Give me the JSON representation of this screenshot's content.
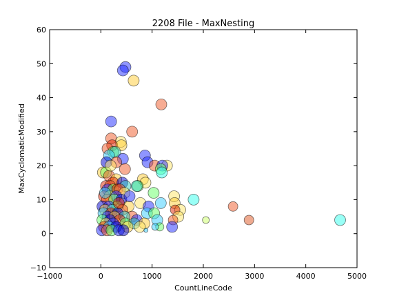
{
  "chart_data": {
    "type": "scatter",
    "title": "2208 File - MaxNesting",
    "xlabel": "CountLineCode",
    "ylabel": "MaxCyclomaticModified",
    "xlim": [
      -1000,
      5000
    ],
    "ylim": [
      -10,
      60
    ],
    "xticks": [
      -1000,
      0,
      1000,
      2000,
      3000,
      4000,
      5000
    ],
    "yticks": [
      -10,
      0,
      10,
      20,
      30,
      40,
      50,
      60
    ],
    "grid": false,
    "legend": "none",
    "marker_alpha": 0.5,
    "size_encodes": "MaxNesting",
    "points": [
      {
        "x": 480,
        "y": 49,
        "r": 8,
        "color": "#1f2bff"
      },
      {
        "x": 430,
        "y": 48,
        "r": 8,
        "color": "#1f2bff"
      },
      {
        "x": 640,
        "y": 45,
        "r": 8,
        "color": "#ffcc33"
      },
      {
        "x": 1180,
        "y": 38,
        "r": 8,
        "color": "#f05a28"
      },
      {
        "x": 200,
        "y": 33,
        "r": 8,
        "color": "#1f2bff"
      },
      {
        "x": 610,
        "y": 30,
        "r": 8,
        "color": "#f05a28"
      },
      {
        "x": 200,
        "y": 28,
        "r": 8,
        "color": "#f05a28"
      },
      {
        "x": 390,
        "y": 27,
        "r": 8,
        "color": "#ffe666"
      },
      {
        "x": 220,
        "y": 26,
        "r": 8,
        "color": "#dd2200"
      },
      {
        "x": 400,
        "y": 26,
        "r": 8,
        "color": "#ffcc33"
      },
      {
        "x": 130,
        "y": 25,
        "r": 8,
        "color": "#f05a28"
      },
      {
        "x": 240,
        "y": 24,
        "r": 8,
        "color": "#66ff66"
      },
      {
        "x": 280,
        "y": 24,
        "r": 8,
        "color": "#33ccbb"
      },
      {
        "x": 160,
        "y": 23,
        "r": 8,
        "color": "#33ccff"
      },
      {
        "x": 860,
        "y": 23,
        "r": 8,
        "color": "#1f2bff"
      },
      {
        "x": 430,
        "y": 22,
        "r": 8,
        "color": "#1f2bff"
      },
      {
        "x": 300,
        "y": 21,
        "r": 8,
        "color": "#f05a28"
      },
      {
        "x": 910,
        "y": 21,
        "r": 8,
        "color": "#1f2bff"
      },
      {
        "x": 110,
        "y": 21,
        "r": 8,
        "color": "#0000cc"
      },
      {
        "x": 1050,
        "y": 20,
        "r": 8,
        "color": "#f05a28"
      },
      {
        "x": 1290,
        "y": 20,
        "r": 8,
        "color": "#ffe666"
      },
      {
        "x": 1200,
        "y": 20,
        "r": 8,
        "color": "#1f2bff"
      },
      {
        "x": 1170,
        "y": 19,
        "r": 8,
        "color": "#66ff66"
      },
      {
        "x": 470,
        "y": 19,
        "r": 8,
        "color": "#f05a28"
      },
      {
        "x": 40,
        "y": 18,
        "r": 8,
        "color": "#ffcc33"
      },
      {
        "x": 100,
        "y": 18,
        "r": 8,
        "color": "#66ff66"
      },
      {
        "x": 160,
        "y": 17,
        "r": 8,
        "color": "#f05a28"
      },
      {
        "x": 1190,
        "y": 18,
        "r": 8,
        "color": "#33ffee"
      },
      {
        "x": 300,
        "y": 16,
        "r": 8,
        "color": "#ffcc33"
      },
      {
        "x": 240,
        "y": 15,
        "r": 8,
        "color": "#dd2200"
      },
      {
        "x": 820,
        "y": 16,
        "r": 8,
        "color": "#ffcc33"
      },
      {
        "x": 870,
        "y": 15,
        "r": 8,
        "color": "#ffe666"
      },
      {
        "x": 420,
        "y": 15,
        "r": 8,
        "color": "#0000cc"
      },
      {
        "x": 720,
        "y": 14,
        "r": 8,
        "color": "#66ff66"
      },
      {
        "x": 100,
        "y": 14,
        "r": 8,
        "color": "#dd2200"
      },
      {
        "x": 180,
        "y": 14,
        "r": 8,
        "color": "#f05a28"
      },
      {
        "x": 480,
        "y": 14,
        "r": 8,
        "color": "#33ccbb"
      },
      {
        "x": 700,
        "y": 14,
        "r": 8,
        "color": "#33ccbb"
      },
      {
        "x": 130,
        "y": 13,
        "r": 8,
        "color": "#1f2bff"
      },
      {
        "x": 240,
        "y": 13,
        "r": 8,
        "color": "#66ff66"
      },
      {
        "x": 320,
        "y": 13,
        "r": 8,
        "color": "#dd2200"
      },
      {
        "x": 370,
        "y": 13,
        "r": 8,
        "color": "#f05a28"
      },
      {
        "x": 460,
        "y": 12,
        "r": 8,
        "color": "#ffe666"
      },
      {
        "x": 1030,
        "y": 12,
        "r": 8,
        "color": "#66ff66"
      },
      {
        "x": 60,
        "y": 11,
        "r": 8,
        "color": "#dd2200"
      },
      {
        "x": 170,
        "y": 11,
        "r": 8,
        "color": "#ffcc33"
      },
      {
        "x": 300,
        "y": 11,
        "r": 8,
        "color": "#1f2bff"
      },
      {
        "x": 1430,
        "y": 11,
        "r": 8,
        "color": "#ffe666"
      },
      {
        "x": 1810,
        "y": 10,
        "r": 8,
        "color": "#33ffee"
      },
      {
        "x": 120,
        "y": 10,
        "r": 8,
        "color": "#f05a28"
      },
      {
        "x": 260,
        "y": 10,
        "r": 8,
        "color": "#66ff66"
      },
      {
        "x": 400,
        "y": 10,
        "r": 8,
        "color": "#0000cc"
      },
      {
        "x": 1170,
        "y": 9,
        "r": 8,
        "color": "#33ccff"
      },
      {
        "x": 770,
        "y": 9,
        "r": 8,
        "color": "#ffe666"
      },
      {
        "x": 1440,
        "y": 9,
        "r": 8,
        "color": "#ffcc33"
      },
      {
        "x": 2580,
        "y": 8,
        "r": 7,
        "color": "#f05a28"
      },
      {
        "x": 930,
        "y": 8,
        "r": 8,
        "color": "#1f2bff"
      },
      {
        "x": 30,
        "y": 8,
        "r": 8,
        "color": "#0000cc"
      },
      {
        "x": 160,
        "y": 8,
        "r": 8,
        "color": "#1f2bff"
      },
      {
        "x": 320,
        "y": 8,
        "r": 8,
        "color": "#66ff66"
      },
      {
        "x": 540,
        "y": 8,
        "r": 8,
        "color": "#ffcc33"
      },
      {
        "x": 1550,
        "y": 7,
        "r": 8,
        "color": "#ffe666"
      },
      {
        "x": 1450,
        "y": 7,
        "r": 7,
        "color": "#dd2200"
      },
      {
        "x": 80,
        "y": 7,
        "r": 8,
        "color": "#ffcc33"
      },
      {
        "x": 230,
        "y": 7,
        "r": 8,
        "color": "#33ccbb"
      },
      {
        "x": 420,
        "y": 7,
        "r": 8,
        "color": "#f05a28"
      },
      {
        "x": 900,
        "y": 6,
        "r": 8,
        "color": "#33ccff"
      },
      {
        "x": 1040,
        "y": 6,
        "r": 8,
        "color": "#66ff66"
      },
      {
        "x": 50,
        "y": 6,
        "r": 8,
        "color": "#33ccff"
      },
      {
        "x": 200,
        "y": 6,
        "r": 8,
        "color": "#dd2200"
      },
      {
        "x": 330,
        "y": 6,
        "r": 8,
        "color": "#0000cc"
      },
      {
        "x": 610,
        "y": 5,
        "r": 8,
        "color": "#f05a28"
      },
      {
        "x": 1510,
        "y": 5,
        "r": 8,
        "color": "#ffe666"
      },
      {
        "x": 130,
        "y": 5,
        "r": 8,
        "color": "#1f2bff"
      },
      {
        "x": 270,
        "y": 5,
        "r": 8,
        "color": "#ffcc33"
      },
      {
        "x": 460,
        "y": 5,
        "r": 8,
        "color": "#33ccbb"
      },
      {
        "x": 2050,
        "y": 4,
        "r": 5,
        "color": "#ccff66"
      },
      {
        "x": 2890,
        "y": 4,
        "r": 7,
        "color": "#dd5522"
      },
      {
        "x": 4670,
        "y": 4,
        "r": 8,
        "color": "#33ffee"
      },
      {
        "x": 1410,
        "y": 4,
        "r": 7,
        "color": "#f05a28"
      },
      {
        "x": 1100,
        "y": 4,
        "r": 8,
        "color": "#33ccff"
      },
      {
        "x": 30,
        "y": 4,
        "r": 8,
        "color": "#66ff66"
      },
      {
        "x": 180,
        "y": 4,
        "r": 8,
        "color": "#0000cc"
      },
      {
        "x": 370,
        "y": 4,
        "r": 8,
        "color": "#dd2200"
      },
      {
        "x": 700,
        "y": 4,
        "r": 8,
        "color": "#1f2bff"
      },
      {
        "x": 850,
        "y": 3,
        "r": 8,
        "color": "#ffcc33"
      },
      {
        "x": 100,
        "y": 3,
        "r": 8,
        "color": "#ffe666"
      },
      {
        "x": 240,
        "y": 3,
        "r": 8,
        "color": "#1f2bff"
      },
      {
        "x": 480,
        "y": 3,
        "r": 8,
        "color": "#66ff66"
      },
      {
        "x": 650,
        "y": 3,
        "r": 8,
        "color": "#33ccbb"
      },
      {
        "x": 1390,
        "y": 2,
        "r": 8,
        "color": "#1f2bff"
      },
      {
        "x": 1150,
        "y": 2,
        "r": 6,
        "color": "#66ff66"
      },
      {
        "x": 1060,
        "y": 2,
        "r": 5,
        "color": "#33ccff"
      },
      {
        "x": 60,
        "y": 2,
        "r": 8,
        "color": "#dd2200"
      },
      {
        "x": 160,
        "y": 2,
        "r": 8,
        "color": "#33ccff"
      },
      {
        "x": 300,
        "y": 2,
        "r": 8,
        "color": "#0000cc"
      },
      {
        "x": 520,
        "y": 2,
        "r": 8,
        "color": "#ffcc33"
      },
      {
        "x": 760,
        "y": 2,
        "r": 8,
        "color": "#ffe666"
      },
      {
        "x": 20,
        "y": 1,
        "r": 8,
        "color": "#1f2bff"
      },
      {
        "x": 120,
        "y": 1,
        "r": 8,
        "color": "#f05a28"
      },
      {
        "x": 210,
        "y": 1,
        "r": 8,
        "color": "#66ff66"
      },
      {
        "x": 350,
        "y": 1,
        "r": 8,
        "color": "#1f2bff"
      },
      {
        "x": 440,
        "y": 1,
        "r": 8,
        "color": "#0000cc"
      },
      {
        "x": 880,
        "y": 1,
        "r": 3,
        "color": "#33ccff"
      },
      {
        "x": 80,
        "y": 12,
        "r": 8,
        "color": "#33ccff"
      },
      {
        "x": 350,
        "y": 9,
        "r": 8,
        "color": "#dd2200"
      },
      {
        "x": 560,
        "y": 11,
        "r": 8,
        "color": "#1f2bff"
      },
      {
        "x": 190,
        "y": 20,
        "r": 8,
        "color": "#ffe666"
      }
    ]
  }
}
